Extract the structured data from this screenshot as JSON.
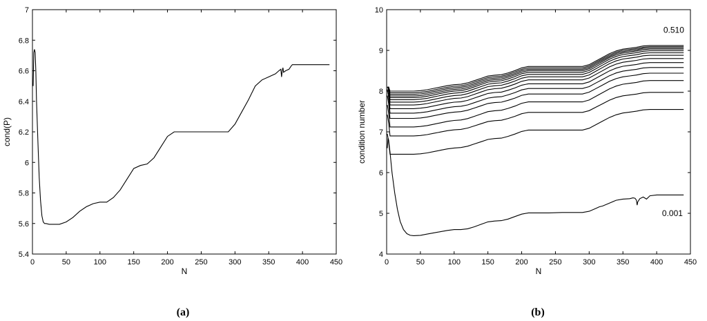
{
  "chart_data": [
    {
      "type": "line",
      "caption": "(a)",
      "xlabel": "N",
      "ylabel": "cond(P)",
      "xlim": [
        0,
        450
      ],
      "ylim": [
        5.4,
        7
      ],
      "xticks": [
        "0",
        "50",
        "100",
        "150",
        "200",
        "250",
        "300",
        "350",
        "400",
        "450"
      ],
      "yticks": [
        "5.4",
        "5.6",
        "5.8",
        "6",
        "6.2",
        "6.4",
        "6.6",
        "6.8",
        "7"
      ],
      "grid": false,
      "series": [
        {
          "x": [
            1,
            2,
            3,
            4,
            5,
            6,
            8,
            10,
            12,
            14,
            16,
            18,
            20,
            25,
            30,
            40,
            50,
            60,
            70,
            80,
            90,
            100,
            110,
            120,
            130,
            140,
            150,
            160,
            170,
            180,
            190,
            200,
            210,
            220,
            240,
            260,
            280,
            290,
            300,
            310,
            320,
            330,
            340,
            350,
            360,
            365,
            368,
            369,
            370,
            371,
            372,
            375,
            380,
            383,
            385,
            390,
            400,
            420,
            440
          ],
          "y": [
            6.5,
            6.72,
            6.74,
            6.72,
            6.6,
            6.4,
            6.15,
            5.9,
            5.75,
            5.65,
            5.61,
            5.6,
            5.6,
            5.595,
            5.595,
            5.595,
            5.61,
            5.64,
            5.68,
            5.71,
            5.73,
            5.74,
            5.74,
            5.77,
            5.82,
            5.89,
            5.96,
            5.98,
            5.99,
            6.03,
            6.1,
            6.17,
            6.2,
            6.2,
            6.2,
            6.2,
            6.2,
            6.2,
            6.25,
            6.33,
            6.41,
            6.5,
            6.54,
            6.56,
            6.58,
            6.6,
            6.61,
            6.56,
            6.6,
            6.62,
            6.59,
            6.6,
            6.61,
            6.63,
            6.64,
            6.64,
            6.64,
            6.64,
            6.64
          ]
        }
      ]
    },
    {
      "type": "line",
      "caption": "(b)",
      "xlabel": "N",
      "ylabel": "condition number",
      "xlim": [
        0,
        450
      ],
      "ylim": [
        4,
        10
      ],
      "xticks": [
        "0",
        "50",
        "100",
        "150",
        "200",
        "250",
        "300",
        "350",
        "400",
        "450"
      ],
      "yticks": [
        "4",
        "5",
        "6",
        "7",
        "8",
        "9",
        "10"
      ],
      "grid": false,
      "annotations": [
        "0.510",
        "0.001"
      ],
      "bottom_series": {
        "x": [
          1,
          2,
          3,
          5,
          8,
          12,
          16,
          20,
          25,
          30,
          35,
          40,
          50,
          60,
          70,
          80,
          90,
          100,
          110,
          120,
          130,
          140,
          150,
          160,
          170,
          180,
          190,
          200,
          210,
          220,
          240,
          260,
          280,
          290,
          300,
          310,
          315,
          320,
          330,
          340,
          350,
          360,
          365,
          368,
          370,
          371,
          372,
          375,
          380,
          385,
          390,
          400,
          420,
          440
        ],
        "y": [
          6.6,
          6.85,
          6.8,
          6.5,
          6.0,
          5.5,
          5.1,
          4.8,
          4.6,
          4.5,
          4.46,
          4.45,
          4.46,
          4.49,
          4.52,
          4.55,
          4.58,
          4.6,
          4.6,
          4.62,
          4.67,
          4.73,
          4.79,
          4.81,
          4.82,
          4.86,
          4.92,
          4.98,
          5.01,
          5.01,
          5.01,
          5.02,
          5.02,
          5.02,
          5.05,
          5.12,
          5.16,
          5.18,
          5.25,
          5.32,
          5.35,
          5.36,
          5.38,
          5.37,
          5.32,
          5.2,
          5.28,
          5.36,
          5.4,
          5.35,
          5.43,
          5.45,
          5.45,
          5.45
        ]
      },
      "stacked_levels": [
        7.55,
        7.97,
        8.26,
        8.44,
        8.58,
        8.7,
        8.8,
        8.88,
        8.94,
        8.99,
        9.03,
        9.06,
        9.09,
        9.12
      ],
      "stacked_start_levels": [
        6.45,
        6.9,
        7.12,
        7.33,
        7.46,
        7.57,
        7.66,
        7.73,
        7.79,
        7.84,
        7.88,
        7.92,
        7.96,
        8.0
      ]
    }
  ]
}
